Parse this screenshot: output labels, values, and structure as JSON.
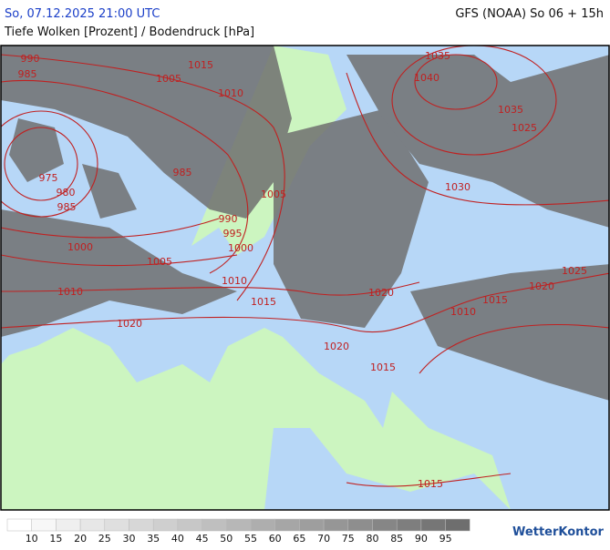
{
  "header": {
    "left": "So, 07.12.2025 21:00 UTC",
    "right": "GFS (NOAA) So 06 + 15h",
    "subtitle": "Tiefe Wolken [Prozent] / Bodendruck [hPa]"
  },
  "isobar_labels": [
    990,
    985,
    1015,
    1005,
    1010,
    1035,
    1040,
    1035,
    1025,
    975,
    980,
    985,
    985,
    1030,
    1005,
    990,
    995,
    1000,
    1000,
    1005,
    1010,
    1010,
    1015,
    1020,
    1025,
    1020,
    1015,
    1010,
    1020,
    1020,
    1015,
    1015
  ],
  "legend": {
    "ticks": [
      10,
      15,
      20,
      25,
      30,
      35,
      40,
      45,
      50,
      55,
      60,
      65,
      70,
      75,
      80,
      85,
      90,
      95
    ]
  },
  "logo": "WetterKontor"
}
